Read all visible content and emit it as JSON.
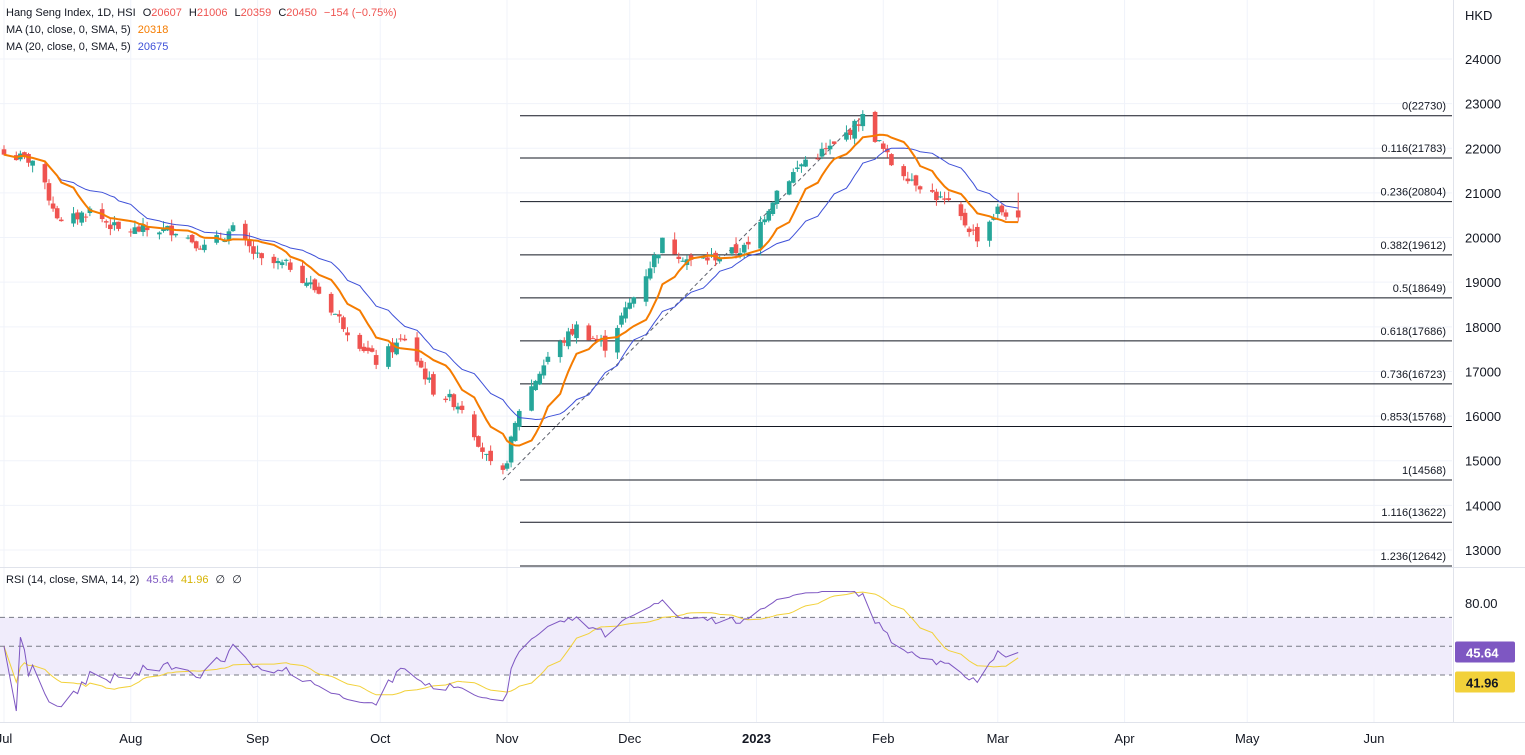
{
  "header": {
    "symbol": "Hang Seng Index, 1D, HSI",
    "o_label": "O",
    "o_value": "20607",
    "h_label": "H",
    "h_value": "21006",
    "l_label": "L",
    "l_value": "20359",
    "c_label": "C",
    "c_value": "20450",
    "change": "−154 (−0.75%)",
    "ma10_label": "MA (10, close, 0, SMA, 5)",
    "ma10_value": "20318",
    "ma20_label": "MA (20, close, 0, SMA, 5)",
    "ma20_value": "20675"
  },
  "rsi_header": {
    "label": "RSI (14, close, SMA, 14, 2)",
    "rsi_value": "45.64",
    "sma_value": "41.96",
    "extra1": "∅",
    "extra2": "∅"
  },
  "colors": {
    "up": "#26a69a",
    "down": "#ef5350",
    "ma10": "#f57c00",
    "ma20": "#3f51d8",
    "rsi": "#7e57c2",
    "rsi_ma": "#f2d13a",
    "rsi_band": "#f0ecfb",
    "grid": "#f0f3fa",
    "text": "#131722"
  },
  "chart_data": [
    {
      "type": "candlestick",
      "currency": "HKD",
      "y_ticks": [
        13000,
        14000,
        15000,
        16000,
        17000,
        18000,
        19000,
        20000,
        21000,
        22000,
        23000,
        24000
      ],
      "x_ticks": [
        "Jul",
        "Aug",
        "Sep",
        "Oct",
        "Nov",
        "Dec",
        "2023",
        "Feb",
        "Mar",
        "Apr",
        "May",
        "Jun"
      ],
      "ylim": [
        12200,
        25200
      ],
      "last_close": 20450,
      "close_series": [
        {
          "date": "2022-07-01",
          "close": 21860
        },
        {
          "date": "2022-07-08",
          "close": 21725
        },
        {
          "date": "2022-07-15",
          "close": 20297
        },
        {
          "date": "2022-07-22",
          "close": 20610
        },
        {
          "date": "2022-07-29",
          "close": 20157
        },
        {
          "date": "2022-08-05",
          "close": 20175
        },
        {
          "date": "2022-08-12",
          "close": 20175
        },
        {
          "date": "2022-08-19",
          "close": 19773
        },
        {
          "date": "2022-08-26",
          "close": 20170
        },
        {
          "date": "2022-09-02",
          "close": 19452
        },
        {
          "date": "2022-09-09",
          "close": 19362
        },
        {
          "date": "2022-09-16",
          "close": 18762
        },
        {
          "date": "2022-09-23",
          "close": 17933
        },
        {
          "date": "2022-09-30",
          "close": 17223
        },
        {
          "date": "2022-10-07",
          "close": 17740
        },
        {
          "date": "2022-10-14",
          "close": 16588
        },
        {
          "date": "2022-10-21",
          "close": 16211
        },
        {
          "date": "2022-10-28",
          "close": 14863
        },
        {
          "date": "2022-10-31",
          "close": 14687
        },
        {
          "date": "2022-11-04",
          "close": 16161
        },
        {
          "date": "2022-11-11",
          "close": 17325
        },
        {
          "date": "2022-11-18",
          "close": 17993
        },
        {
          "date": "2022-11-25",
          "close": 17573
        },
        {
          "date": "2022-12-02",
          "close": 18675
        },
        {
          "date": "2022-12-09",
          "close": 19901
        },
        {
          "date": "2022-12-16",
          "close": 19450
        },
        {
          "date": "2022-12-23",
          "close": 19593
        },
        {
          "date": "2022-12-30",
          "close": 19781
        },
        {
          "date": "2023-01-06",
          "close": 21052
        },
        {
          "date": "2023-01-13",
          "close": 21738
        },
        {
          "date": "2023-01-20",
          "close": 22044
        },
        {
          "date": "2023-01-27",
          "close": 22689
        },
        {
          "date": "2023-02-03",
          "close": 21660
        },
        {
          "date": "2023-02-10",
          "close": 21190
        },
        {
          "date": "2023-02-17",
          "close": 20719
        },
        {
          "date": "2023-02-24",
          "close": 20010
        },
        {
          "date": "2023-03-01",
          "close": 20620
        },
        {
          "date": "2023-03-06",
          "close": 20450
        }
      ],
      "fibonacci": [
        {
          "level": "0",
          "price": 22730
        },
        {
          "level": "0.116",
          "price": 21783
        },
        {
          "level": "0.236",
          "price": 20804
        },
        {
          "level": "0.382",
          "price": 19612
        },
        {
          "level": "0.5",
          "price": 18649
        },
        {
          "level": "0.618",
          "price": 17686
        },
        {
          "level": "0.736",
          "price": 16723
        },
        {
          "level": "0.853",
          "price": 15768
        },
        {
          "level": "1",
          "price": 14568
        },
        {
          "level": "1.116",
          "price": 13622
        },
        {
          "level": "1.236",
          "price": 12642
        }
      ]
    },
    {
      "type": "line",
      "name": "RSI (14, close, SMA, 14, 2)",
      "y_ticks": [
        80
      ],
      "tick_labels": [
        "80.00"
      ],
      "bands": [
        70,
        50,
        30
      ],
      "ylim": [
        5,
        88
      ],
      "rsi": 45.64,
      "rsi_ma": 41.96
    }
  ]
}
